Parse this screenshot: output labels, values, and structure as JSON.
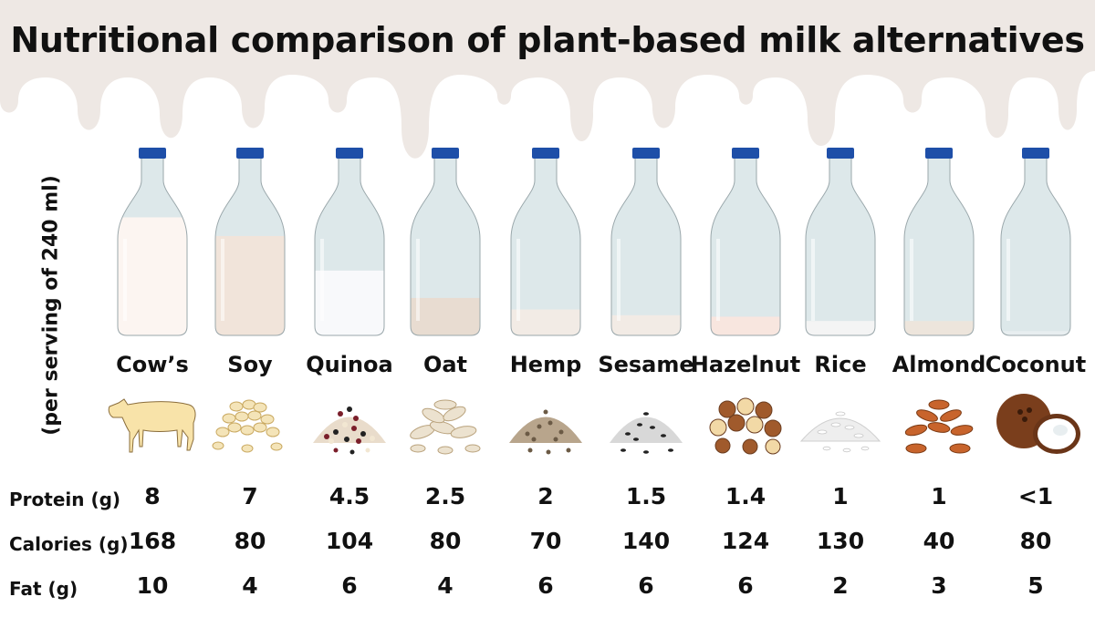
{
  "title": "Nutritional comparison of plant-based milk alternatives",
  "serving_note": "(per serving of 240 ml)",
  "row_labels": {
    "protein": "Protein (g)",
    "calories": "Calories (g)",
    "fat": "Fat (g)"
  },
  "colors": {
    "background_splash": "#eee8e4",
    "bottle_glass": "#dde8ea",
    "bottle_cap": "#1e4fa8",
    "text": "#111111"
  },
  "milks": [
    {
      "name": "Cow’s",
      "protein": "8",
      "calories": "168",
      "fat": "10",
      "fill_level": 0.82,
      "milk_color": "#fcf5f1",
      "icon": "cow-icon"
    },
    {
      "name": "Soy",
      "protein": "7",
      "calories": "80",
      "fat": "4",
      "fill_level": 0.69,
      "milk_color": "#f1e4da",
      "icon": "soybeans-icon"
    },
    {
      "name": "Quinoa",
      "protein": "4.5",
      "calories": "104",
      "fat": "6",
      "fill_level": 0.45,
      "milk_color": "#f8f9fb",
      "icon": "quinoa-seeds-icon"
    },
    {
      "name": "Oat",
      "protein": "2.5",
      "calories": "80",
      "fat": "4",
      "fill_level": 0.26,
      "milk_color": "#e8dcd1",
      "icon": "oat-flakes-icon"
    },
    {
      "name": "Hemp",
      "protein": "2",
      "calories": "70",
      "fat": "6",
      "fill_level": 0.18,
      "milk_color": "#f2ebe5",
      "icon": "hemp-seeds-icon"
    },
    {
      "name": "Sesame",
      "protein": "1.5",
      "calories": "140",
      "fat": "6",
      "fill_level": 0.14,
      "milk_color": "#f2ebe5",
      "icon": "sesame-seeds-icon"
    },
    {
      "name": "Hazelnut",
      "protein": "1.4",
      "calories": "124",
      "fat": "6",
      "fill_level": 0.13,
      "milk_color": "#f8e6df",
      "icon": "hazelnuts-icon"
    },
    {
      "name": "Rice",
      "protein": "1",
      "calories": "130",
      "fat": "2",
      "fill_level": 0.1,
      "milk_color": "#f4f4f4",
      "icon": "rice-grains-icon"
    },
    {
      "name": "Almond",
      "protein": "1",
      "calories": "40",
      "fat": "3",
      "fill_level": 0.1,
      "milk_color": "#ede5dc",
      "icon": "almonds-icon"
    },
    {
      "name": "Coconut",
      "protein": "<1",
      "calories": "80",
      "fat": "5",
      "fill_level": 0.03,
      "milk_color": "#e8eef0",
      "icon": "coconut-icon"
    }
  ]
}
